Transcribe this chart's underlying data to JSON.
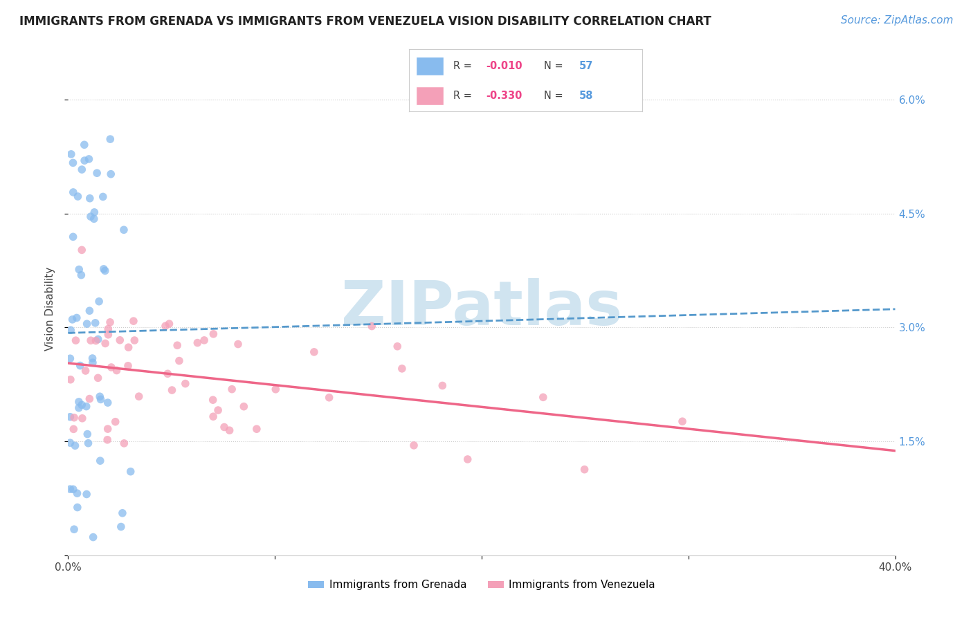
{
  "title": "IMMIGRANTS FROM GRENADA VS IMMIGRANTS FROM VENEZUELA VISION DISABILITY CORRELATION CHART",
  "source": "Source: ZipAtlas.com",
  "ylabel": "Vision Disability",
  "x_min": 0.0,
  "x_max": 0.4,
  "y_min": 0.0,
  "y_max": 0.065,
  "grenada_color": "#88bbee",
  "venezuela_color": "#f4a0b8",
  "grenada_line_color": "#5599cc",
  "venezuela_line_color": "#ee6688",
  "grenada_R": -0.01,
  "grenada_N": 57,
  "venezuela_R": -0.33,
  "venezuela_N": 58,
  "watermark_text": "ZIPatlas",
  "watermark_color": "#d0e4f0",
  "legend_label_grenada": "Immigrants from Grenada",
  "legend_label_venezuela": "Immigrants from Venezuela",
  "title_fontsize": 12,
  "axis_label_fontsize": 11,
  "tick_fontsize": 11,
  "legend_fontsize": 11,
  "source_fontsize": 11
}
